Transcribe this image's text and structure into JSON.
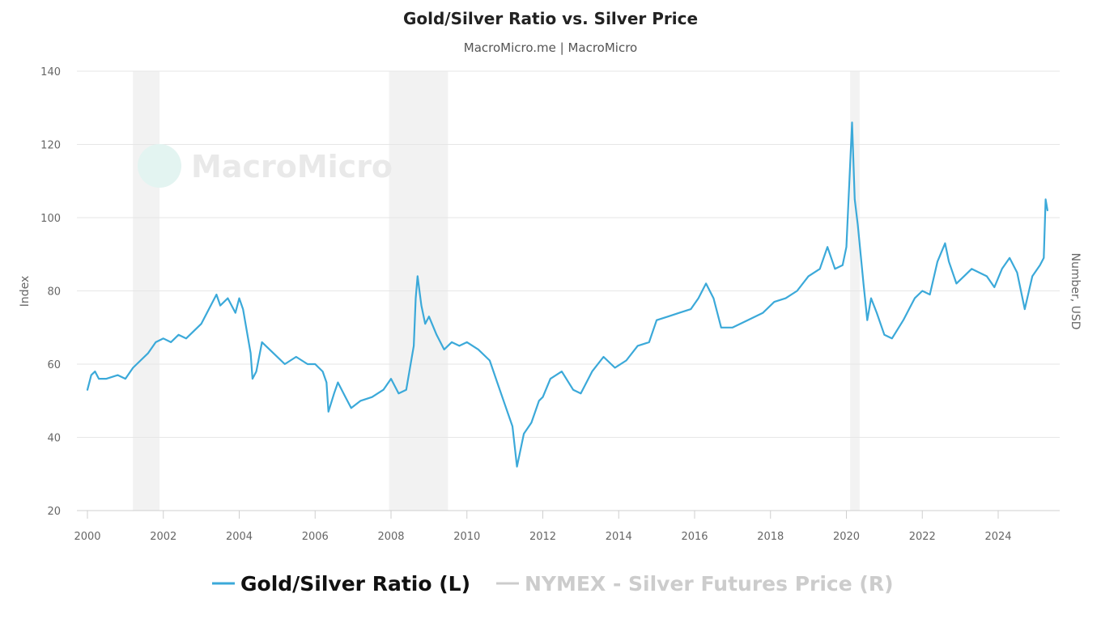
{
  "chart_data": {
    "type": "line",
    "title": "Gold/Silver Ratio vs. Silver Price",
    "subtitle": "MacroMicro.me | MacroMicro",
    "watermark": "MacroMicro",
    "ylabel_left": "Index",
    "ylabel_right": "Number, USD",
    "ylim": [
      20,
      140
    ],
    "y_ticks": [
      20,
      40,
      60,
      80,
      100,
      120,
      140
    ],
    "xlim": [
      2000,
      2025.6
    ],
    "x_ticks": [
      2000,
      2002,
      2004,
      2006,
      2008,
      2010,
      2012,
      2014,
      2016,
      2018,
      2020,
      2022,
      2024
    ],
    "grid": true,
    "legend_position": "bottom",
    "recession_bands": [
      [
        2001.2,
        2001.9
      ],
      [
        2007.95,
        2009.5
      ],
      [
        2020.1,
        2020.35
      ]
    ],
    "colors": {
      "ratio": "#3ba9d9",
      "silver": "#c8c8c8",
      "band": "#f2f2f2"
    },
    "series": [
      {
        "name": "Gold/Silver Ratio (L)",
        "axis": "left",
        "visible": true,
        "x": [
          2000.0,
          2000.1,
          2000.2,
          2000.3,
          2000.5,
          2000.8,
          2001.0,
          2001.2,
          2001.4,
          2001.6,
          2001.8,
          2002.0,
          2002.2,
          2002.4,
          2002.6,
          2002.8,
          2003.0,
          2003.2,
          2003.4,
          2003.5,
          2003.7,
          2003.9,
          2004.0,
          2004.1,
          2004.2,
          2004.3,
          2004.35,
          2004.45,
          2004.6,
          2004.9,
          2005.2,
          2005.5,
          2005.8,
          2006.0,
          2006.2,
          2006.3,
          2006.35,
          2006.5,
          2006.6,
          2006.8,
          2006.95,
          2007.2,
          2007.5,
          2007.8,
          2008.0,
          2008.2,
          2008.4,
          2008.6,
          2008.65,
          2008.7,
          2008.8,
          2008.9,
          2009.0,
          2009.2,
          2009.4,
          2009.6,
          2009.8,
          2010.0,
          2010.3,
          2010.6,
          2010.8,
          2011.0,
          2011.2,
          2011.32,
          2011.5,
          2011.7,
          2011.9,
          2012.0,
          2012.2,
          2012.5,
          2012.8,
          2013.0,
          2013.3,
          2013.6,
          2013.9,
          2014.2,
          2014.5,
          2014.8,
          2015.0,
          2015.3,
          2015.6,
          2015.9,
          2016.1,
          2016.3,
          2016.5,
          2016.7,
          2017.0,
          2017.4,
          2017.8,
          2018.1,
          2018.4,
          2018.7,
          2019.0,
          2019.3,
          2019.5,
          2019.7,
          2019.9,
          2020.0,
          2020.15,
          2020.22,
          2020.3,
          2020.45,
          2020.55,
          2020.65,
          2020.8,
          2021.0,
          2021.2,
          2021.5,
          2021.8,
          2022.0,
          2022.2,
          2022.4,
          2022.6,
          2022.7,
          2022.9,
          2023.1,
          2023.3,
          2023.5,
          2023.7,
          2023.9,
          2024.1,
          2024.3,
          2024.5,
          2024.7,
          2024.9,
          2025.1,
          2025.2,
          2025.25,
          2025.3
        ],
        "y": [
          53,
          57,
          58,
          56,
          56,
          57,
          56,
          59,
          61,
          63,
          66,
          67,
          66,
          68,
          67,
          69,
          71,
          75,
          79,
          76,
          78,
          74,
          78,
          75,
          69,
          63,
          56,
          58,
          66,
          63,
          60,
          62,
          60,
          60,
          58,
          55,
          47,
          52,
          55,
          51,
          48,
          50,
          51,
          53,
          56,
          52,
          53,
          65,
          78,
          84,
          76,
          71,
          73,
          68,
          64,
          66,
          65,
          66,
          64,
          61,
          55,
          49,
          43,
          32,
          41,
          44,
          50,
          51,
          56,
          58,
          53,
          52,
          58,
          62,
          59,
          61,
          65,
          66,
          72,
          73,
          74,
          75,
          78,
          82,
          78,
          70,
          70,
          72,
          74,
          77,
          78,
          80,
          84,
          86,
          92,
          86,
          87,
          92,
          126,
          105,
          98,
          82,
          72,
          78,
          74,
          68,
          67,
          72,
          78,
          80,
          79,
          88,
          93,
          88,
          82,
          84,
          86,
          85,
          84,
          81,
          86,
          89,
          85,
          75,
          84,
          87,
          89,
          105,
          102
        ]
      },
      {
        "name": "NYMEX - Silver Futures Price (R)",
        "axis": "right",
        "visible": false,
        "x": [],
        "y": []
      }
    ]
  }
}
